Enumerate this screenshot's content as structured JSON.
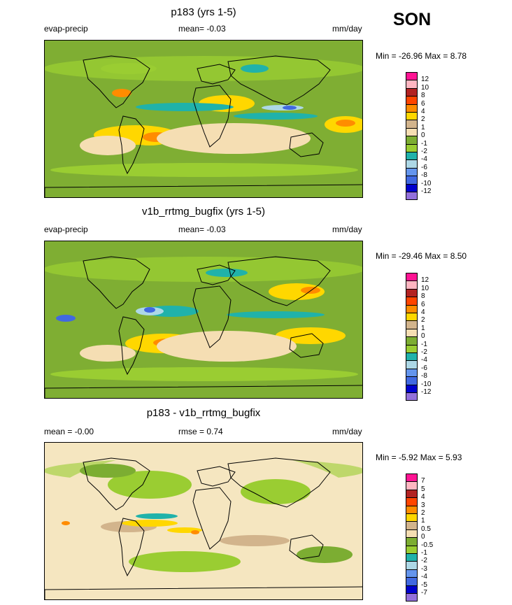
{
  "season": "SON",
  "panels": [
    {
      "title": "p183 (yrs 1-5)",
      "left_label": "evap-precip",
      "center_label": "mean=  -0.03",
      "units": "mm/day",
      "minmax": "Min = -26.96 Max =   8.78",
      "legend_labels": [
        "12",
        "10",
        "8",
        "6",
        "4",
        "2",
        "1",
        "0",
        "-1",
        "-2",
        "-4",
        "-6",
        "-8",
        "-10",
        "-12"
      ]
    },
    {
      "title": "v1b_rrtmg_bugfix (yrs 1-5)",
      "left_label": "evap-precip",
      "center_label": "mean=  -0.03",
      "units": "mm/day",
      "minmax": "Min = -29.46 Max =   8.50",
      "legend_labels": [
        "12",
        "10",
        "8",
        "6",
        "4",
        "2",
        "1",
        "0",
        "-1",
        "-2",
        "-4",
        "-6",
        "-8",
        "-10",
        "-12"
      ]
    },
    {
      "title": "p183 - v1b_rrtmg_bugfix",
      "left_label": "mean =  -0.00",
      "center_label": "rmse =   0.74",
      "units": "mm/day",
      "minmax": "Min =  -5.92 Max =   5.93",
      "legend_labels": [
        "7",
        "5",
        "4",
        "3",
        "2",
        "1",
        "0.5",
        "0",
        "-0.5",
        "-1",
        "-2",
        "-3",
        "-4",
        "-5",
        "-7"
      ]
    }
  ],
  "colors": {
    "scale": [
      "#ff1493",
      "#ffb6c1",
      "#b22222",
      "#ff4500",
      "#ff8c00",
      "#ffd700",
      "#d2b48c",
      "#f5deb3",
      "#7cad32",
      "#9acd32",
      "#20b2aa",
      "#add8e6",
      "#6495ed",
      "#4169e1",
      "#0000cd",
      "#9370db"
    ],
    "ocean_base": "#7fae33",
    "diff_base": "#f5e6c0"
  }
}
